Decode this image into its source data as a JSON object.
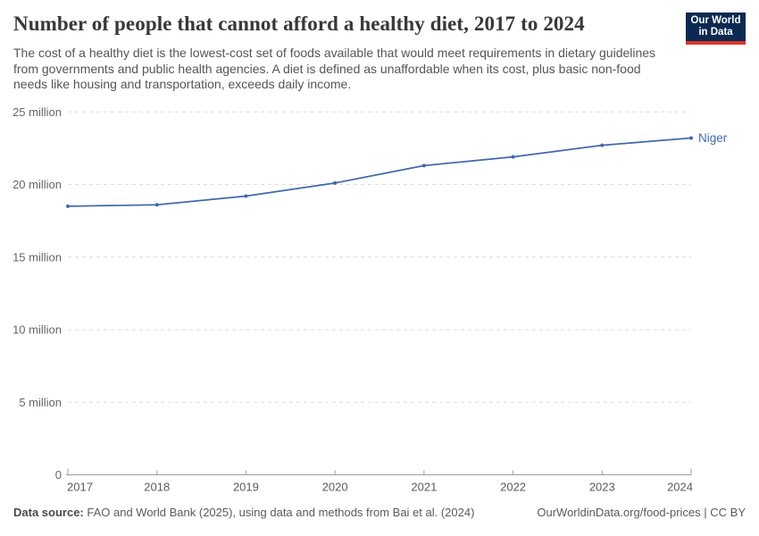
{
  "header": {
    "title": "Number of people that cannot afford a healthy diet, 2017 to 2024",
    "subtitle": "The cost of a healthy diet is the lowest-cost set of foods available that would meet requirements in dietary guidelines from governments and public health agencies. A diet is defined as unaffordable when its cost, plus basic non-food needs like housing and transportation, exceeds daily income.",
    "logo": {
      "line1": "Our World",
      "line2": "in Data",
      "bg_color": "#0c2a51",
      "accent_color": "#dc352b"
    }
  },
  "chart_data": {
    "type": "line",
    "title": "Number of people that cannot afford a healthy diet, 2017 to 2024",
    "x": [
      "2017",
      "2018",
      "2019",
      "2020",
      "2021",
      "2022",
      "2023",
      "2024"
    ],
    "series": [
      {
        "name": "Niger",
        "values_millions": [
          18.5,
          18.6,
          19.2,
          20.1,
          21.3,
          21.9,
          22.7,
          23.2
        ],
        "color": "#4268ab"
      }
    ],
    "end_label": "Niger",
    "y_ticks": [
      {
        "value": 0,
        "label": "0"
      },
      {
        "value": 5,
        "label": "5 million"
      },
      {
        "value": 10,
        "label": "10 million"
      },
      {
        "value": 15,
        "label": "15 million"
      },
      {
        "value": 20,
        "label": "20 million"
      },
      {
        "value": 25,
        "label": "25 million"
      }
    ],
    "ylim_millions": [
      0,
      25
    ],
    "grid": "dashed-horizontal",
    "legend_position": "end-of-line"
  },
  "footer": {
    "source_label": "Data source:",
    "source_text": "FAO and World Bank (2025), using data and methods from Bai et al. (2024)",
    "rights_text": "OurWorldinData.org/food-prices | CC BY"
  },
  "colors": {
    "line": "#4268ab",
    "gridline": "#dcdcdc",
    "axis": "#9e9e9e",
    "title_text": "#383838",
    "subtitle_text": "#555555"
  }
}
